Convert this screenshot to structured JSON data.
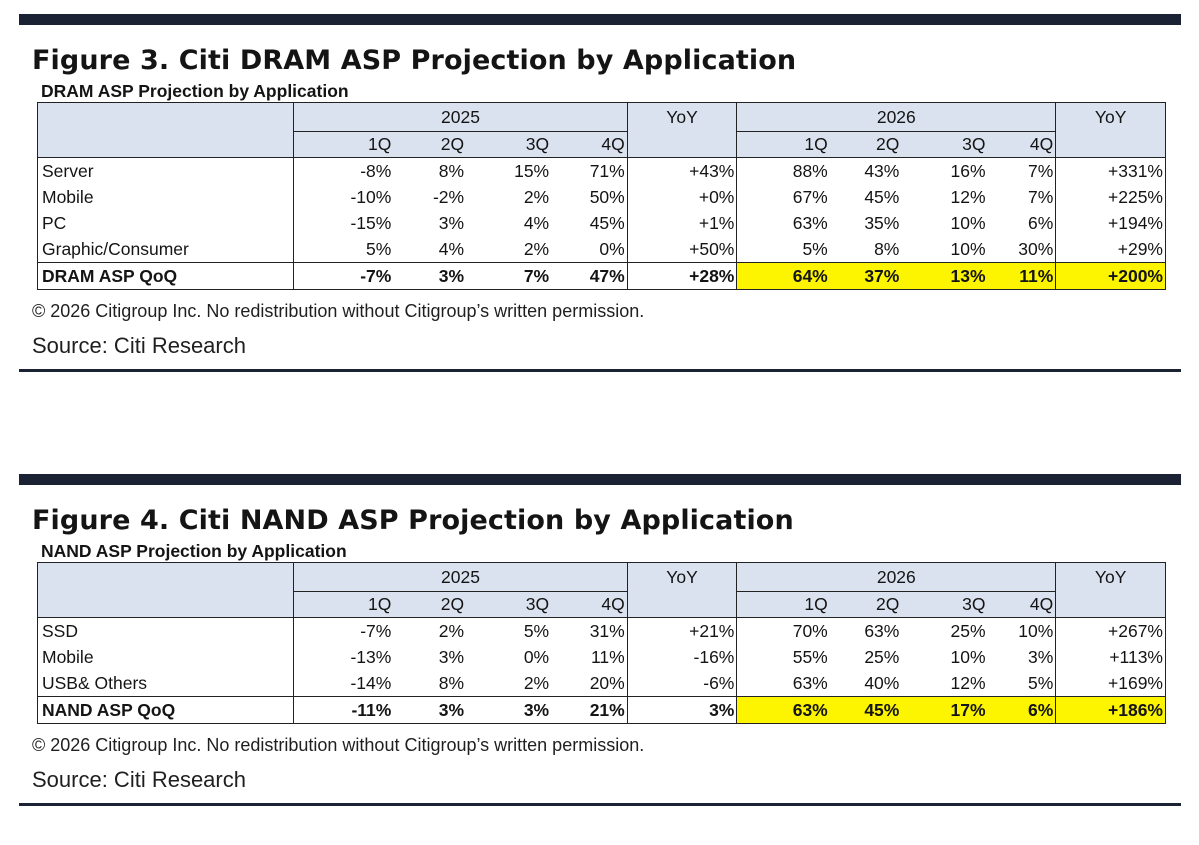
{
  "figures": [
    {
      "title": "Figure 3. Citi DRAM ASP Projection by Application",
      "table_title": "DRAM ASP Projection by Application",
      "year_a": "2025",
      "year_b": "2026",
      "yoy_label": "YoY",
      "quarters": [
        "1Q",
        "2Q",
        "3Q",
        "4Q"
      ],
      "rows": [
        {
          "label": "Server",
          "y2025": [
            "-8%",
            "8%",
            "15%",
            "71%"
          ],
          "yoy2025": "+43%",
          "y2026": [
            "88%",
            "43%",
            "16%",
            "7%"
          ],
          "yoy2026": "+331%"
        },
        {
          "label": "Mobile",
          "y2025": [
            "-10%",
            "-2%",
            "2%",
            "50%"
          ],
          "yoy2025": "+0%",
          "y2026": [
            "67%",
            "45%",
            "12%",
            "7%"
          ],
          "yoy2026": "+225%"
        },
        {
          "label": "PC",
          "y2025": [
            "-15%",
            "3%",
            "4%",
            "45%"
          ],
          "yoy2025": "+1%",
          "y2026": [
            "63%",
            "35%",
            "10%",
            "6%"
          ],
          "yoy2026": "+194%"
        },
        {
          "label": "Graphic/Consumer",
          "y2025": [
            "5%",
            "4%",
            "2%",
            "0%"
          ],
          "yoy2025": "+50%",
          "y2026": [
            "5%",
            "8%",
            "10%",
            "30%"
          ],
          "yoy2026": "+29%"
        }
      ],
      "total": {
        "label": "DRAM ASP QoQ",
        "y2025": [
          "-7%",
          "3%",
          "7%",
          "47%"
        ],
        "yoy2025": "+28%",
        "y2026": [
          "64%",
          "37%",
          "13%",
          "11%"
        ],
        "yoy2026": "+200%"
      },
      "highlight_color": "#fdf500",
      "copyright": "© 2026 Citigroup Inc. No redistribution without Citigroup’s written permission.",
      "source": "Source: Citi Research"
    },
    {
      "title": "Figure 4. Citi NAND ASP Projection by Application",
      "table_title": "NAND ASP Projection by Application",
      "year_a": "2025",
      "year_b": "2026",
      "yoy_label": "YoY",
      "quarters": [
        "1Q",
        "2Q",
        "3Q",
        "4Q"
      ],
      "rows": [
        {
          "label": "SSD",
          "y2025": [
            "-7%",
            "2%",
            "5%",
            "31%"
          ],
          "yoy2025": "+21%",
          "y2026": [
            "70%",
            "63%",
            "25%",
            "10%"
          ],
          "yoy2026": "+267%"
        },
        {
          "label": "Mobile",
          "y2025": [
            "-13%",
            "3%",
            "0%",
            "11%"
          ],
          "yoy2025": "-16%",
          "y2026": [
            "55%",
            "25%",
            "10%",
            "3%"
          ],
          "yoy2026": "+113%"
        },
        {
          "label": "USB& Others",
          "y2025": [
            "-14%",
            "8%",
            "2%",
            "20%"
          ],
          "yoy2025": "-6%",
          "y2026": [
            "63%",
            "40%",
            "12%",
            "5%"
          ],
          "yoy2026": "+169%"
        }
      ],
      "total": {
        "label": "NAND ASP QoQ",
        "y2025": [
          "-11%",
          "3%",
          "3%",
          "21%"
        ],
        "yoy2025": "3%",
        "y2026": [
          "63%",
          "45%",
          "17%",
          "6%"
        ],
        "yoy2026": "+186%"
      },
      "highlight_color": "#fdf500",
      "copyright": "© 2026 Citigroup Inc. No redistribution without Citigroup’s written permission.",
      "source": "Source: Citi Research"
    }
  ]
}
